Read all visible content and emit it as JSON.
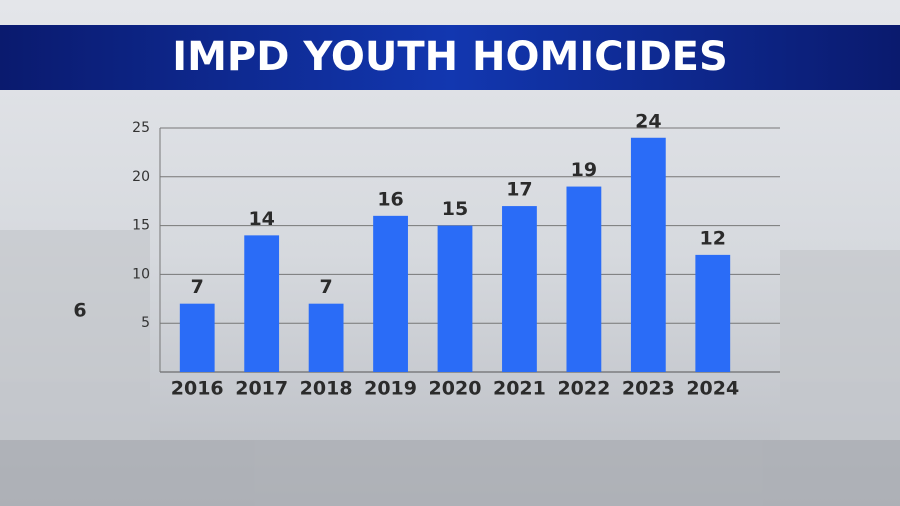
{
  "chart_data": {
    "type": "bar",
    "title": "IMPD YOUTH HOMICIDES",
    "categories": [
      "2016",
      "2017",
      "2018",
      "2019",
      "2020",
      "2021",
      "2022",
      "2023",
      "2024"
    ],
    "values": [
      7,
      14,
      7,
      16,
      15,
      17,
      19,
      24,
      12
    ],
    "color": "#2a6cf7",
    "ylim": [
      0,
      25
    ],
    "yticks": [
      5,
      10,
      15,
      20,
      25
    ],
    "grid": true,
    "annotation": "6"
  }
}
